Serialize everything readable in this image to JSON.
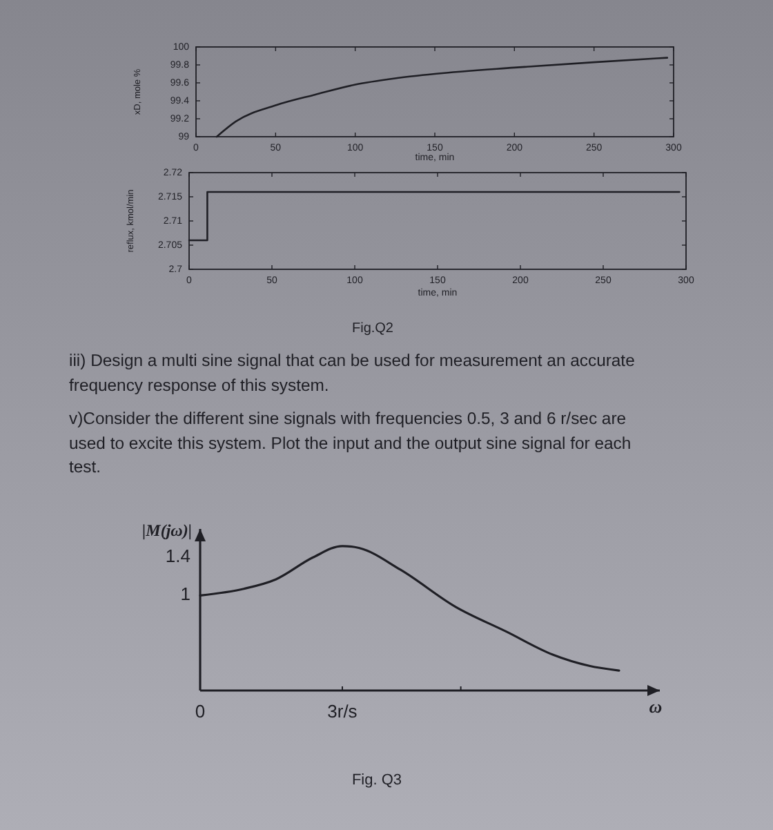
{
  "chart_data": [
    {
      "type": "line",
      "xlabel": "time, min",
      "ylabel": "xD, mole %",
      "color": "#1f1f25",
      "x": [
        13,
        25,
        50,
        75,
        100,
        125,
        150,
        200,
        250,
        296
      ],
      "values": [
        99,
        99.17,
        99.35,
        99.47,
        99.58,
        99.65,
        99.7,
        99.77,
        99.83,
        99.88
      ],
      "xlim": [
        0,
        300
      ],
      "ylim": [
        99,
        100
      ],
      "xticks": [
        0,
        50,
        100,
        150,
        200,
        250,
        300
      ],
      "yticks": [
        99,
        99.2,
        99.4,
        99.6,
        99.8,
        100
      ]
    },
    {
      "type": "line",
      "xlabel": "time, min",
      "ylabel": "reflux, kmol/min",
      "color": "#1f1f25",
      "x": [
        0,
        11,
        11,
        296
      ],
      "values": [
        2.706,
        2.706,
        2.716,
        2.716
      ],
      "xlim": [
        0,
        300
      ],
      "ylim": [
        2.7,
        2.72
      ],
      "xticks": [
        0,
        50,
        100,
        150,
        200,
        250,
        300
      ],
      "yticks": [
        2.7,
        2.705,
        2.71,
        2.715,
        2.72
      ],
      "annotations": [
        "Fig.Q2"
      ]
    },
    {
      "type": "other",
      "annotations": [
        "iii) Design a multi sine signal that can be used for measurement an accurate frequency response of this system.",
        "v)Consider the different sine signals with frequencies 0.5, 3 and 6 r/sec are used to excite this system. Plot the input and the output sine signal for each test."
      ]
    },
    {
      "type": "line",
      "xlabel": "ω",
      "ylabel": "|M(jω)|",
      "color": "#1f1f25",
      "x": [
        0,
        0.92,
        1.6,
        2.38,
        3,
        3.35,
        4.23,
        5.39,
        6.46,
        7.43,
        8.21,
        8.84
      ],
      "values": [
        1,
        1.07,
        1.17,
        1.4,
        1.52,
        1.5,
        1.27,
        0.88,
        0.62,
        0.38,
        0.26,
        0.21
      ],
      "xlim": [
        0,
        9.7
      ],
      "ylim": [
        0,
        1.7
      ],
      "xticks": [
        0,
        {
          "value": 3,
          "label": "3r/s"
        },
        {
          "value": 5.5,
          "label": null
        }
      ],
      "yticks": [
        1,
        1.4
      ],
      "annotations": [
        "Fig. Q3"
      ]
    }
  ]
}
